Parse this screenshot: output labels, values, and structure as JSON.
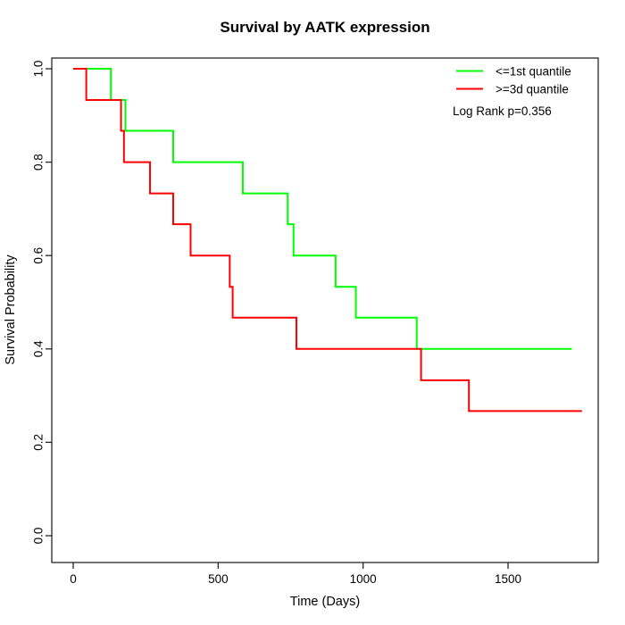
{
  "window": {
    "title": "Survival by AATK expression"
  },
  "chart_data": {
    "type": "line",
    "subtype": "kaplan-meier-step",
    "title": "Survival by AATK expression",
    "xlabel": "Time (Days)",
    "ylabel": "Survival Probability",
    "xlim": [
      0,
      1810
    ],
    "ylim": [
      0,
      1
    ],
    "x_ticks": [
      0,
      500,
      1000,
      1500
    ],
    "x_tick_labels": [
      "0",
      "500",
      "1000",
      "1500"
    ],
    "y_ticks": [
      0.0,
      0.2,
      0.4,
      0.6,
      0.8,
      1.0
    ],
    "y_tick_labels": [
      "0.0",
      "0.2",
      "0.4",
      "0.6",
      "0.8",
      "1.0"
    ],
    "grid": false,
    "legend_position": "top-right",
    "annotation": "Log Rank p=0.356",
    "series": [
      {
        "name": "<=1st quantile",
        "color": "#00ff00",
        "steps": [
          [
            0,
            1.0
          ],
          [
            130,
            0.933
          ],
          [
            180,
            0.867
          ],
          [
            345,
            0.8
          ],
          [
            585,
            0.733
          ],
          [
            740,
            0.667
          ],
          [
            760,
            0.6
          ],
          [
            905,
            0.533
          ],
          [
            975,
            0.467
          ],
          [
            1185,
            0.4
          ]
        ],
        "end_time": 1720
      },
      {
        "name": ">=3d quantile",
        "color": "#ff0000",
        "steps": [
          [
            0,
            1.0
          ],
          [
            45,
            0.933
          ],
          [
            165,
            0.867
          ],
          [
            175,
            0.8
          ],
          [
            265,
            0.733
          ],
          [
            345,
            0.667
          ],
          [
            405,
            0.6
          ],
          [
            540,
            0.533
          ],
          [
            550,
            0.467
          ],
          [
            770,
            0.4
          ],
          [
            1200,
            0.333
          ],
          [
            1365,
            0.267
          ]
        ],
        "end_time": 1755
      }
    ],
    "axis_color": "#262626"
  }
}
